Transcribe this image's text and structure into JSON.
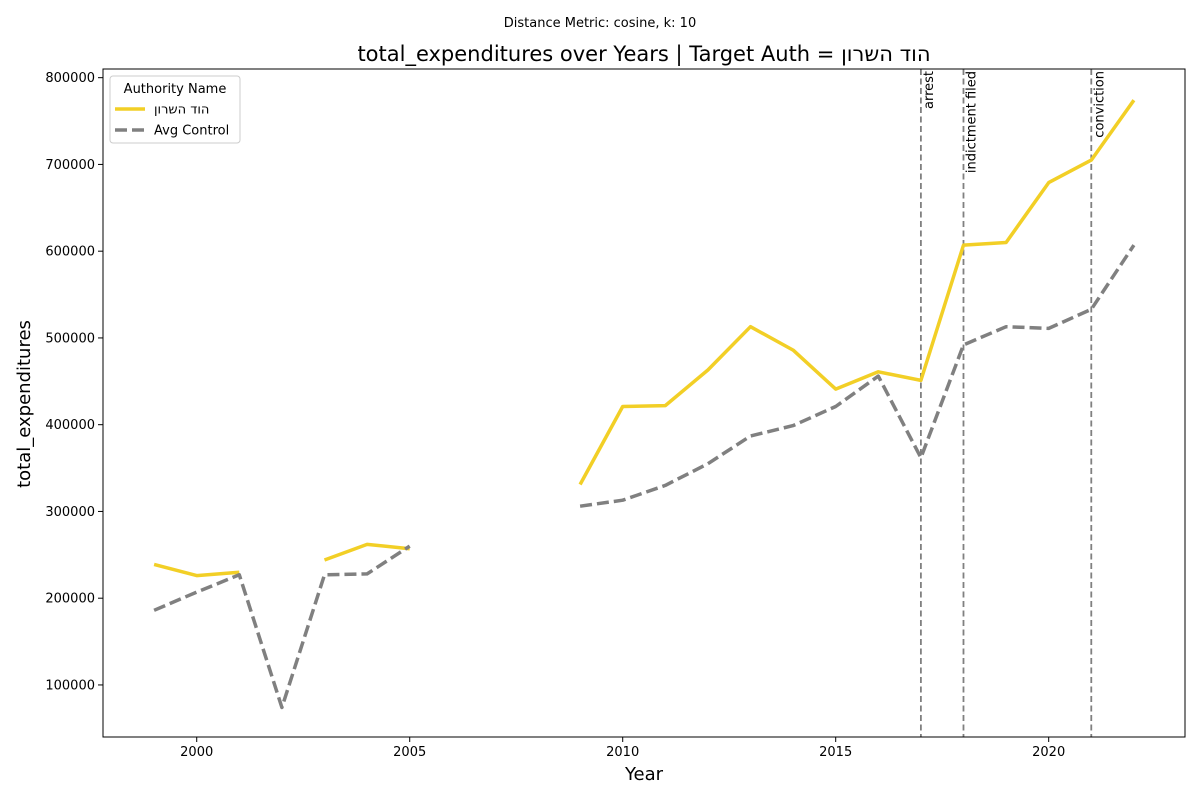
{
  "chart_data": {
    "type": "line",
    "suptitle": "Distance Metric: cosine, k: 10",
    "title": "total_expenditures over Years | Target Auth = הוד השרון",
    "xlabel": "Year",
    "ylabel": "total_expenditures",
    "xlim": [
      1997.8,
      2023.2
    ],
    "ylim": [
      40000,
      810000
    ],
    "xticks": [
      2000,
      2005,
      2010,
      2015,
      2020
    ],
    "yticks": [
      100000,
      200000,
      300000,
      400000,
      500000,
      600000,
      700000,
      800000
    ],
    "grid": false,
    "legend": {
      "title": "Authority Name",
      "placement": "top-left"
    },
    "series": [
      {
        "name": "הוד השרון",
        "color": "#f2cf26",
        "style": "solid",
        "x": [
          1999,
          2000,
          2001,
          2002,
          2003,
          2004,
          2005,
          2006,
          2007,
          2008,
          2009,
          2010,
          2011,
          2012,
          2013,
          2014,
          2015,
          2016,
          2017,
          2018,
          2019,
          2020,
          2021,
          2022
        ],
        "y": [
          239000,
          226000,
          230000,
          null,
          244000,
          262000,
          257000,
          null,
          null,
          null,
          331000,
          421000,
          422000,
          463000,
          513000,
          486000,
          441000,
          461000,
          451000,
          607000,
          610000,
          679000,
          705000,
          774000
        ]
      },
      {
        "name": "Avg Control",
        "color": "#808080",
        "style": "dashed",
        "x": [
          1999,
          2000,
          2001,
          2002,
          2003,
          2004,
          2005,
          2006,
          2007,
          2008,
          2009,
          2010,
          2011,
          2012,
          2013,
          2014,
          2015,
          2016,
          2017,
          2018,
          2019,
          2020,
          2021,
          2022
        ],
        "y": [
          186000,
          207000,
          227000,
          74000,
          227000,
          228000,
          260000,
          null,
          null,
          null,
          306000,
          313000,
          330000,
          355000,
          387000,
          399000,
          421000,
          456000,
          362000,
          492000,
          513000,
          511000,
          533000,
          607000
        ]
      }
    ],
    "events": [
      {
        "x": 2017,
        "label": "arrest"
      },
      {
        "x": 2018,
        "label": "indictment filed"
      },
      {
        "x": 2021,
        "label": "conviction"
      }
    ],
    "event_line_color": "#808080"
  }
}
